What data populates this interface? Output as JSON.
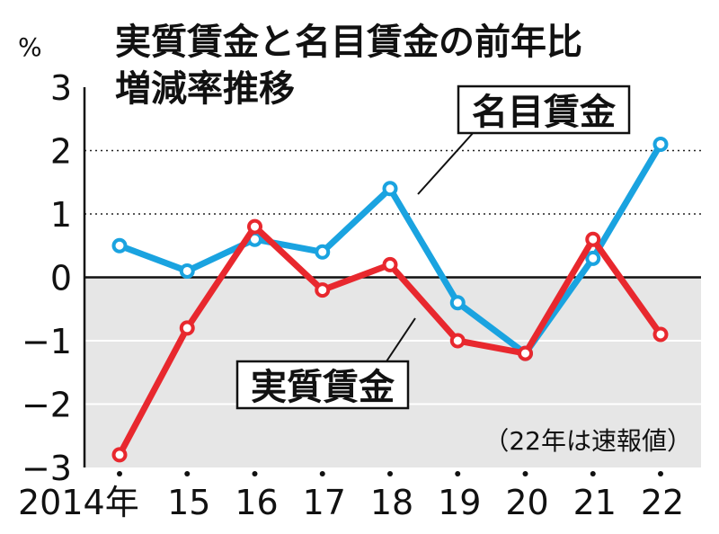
{
  "chart_data": {
    "type": "line",
    "title_line1": "実質賃金と名目賃金の前年比",
    "title_line2": "増減率推移",
    "unit": "%",
    "note": "（22年は速報値）",
    "x": [
      "2014年",
      "15",
      "16",
      "17",
      "18",
      "19",
      "20",
      "21",
      "22"
    ],
    "ylim": [
      -3,
      3
    ],
    "yticks": [
      "3",
      "2",
      "1",
      "0",
      "−1",
      "−2",
      "−3"
    ],
    "grid": "dotted at 1 and 2; solid at 0 and below",
    "series": [
      {
        "name": "名目賃金",
        "color": "#1aa3e0",
        "values": [
          0.5,
          0.1,
          0.6,
          0.4,
          1.4,
          -0.4,
          -1.2,
          0.3,
          2.1
        ]
      },
      {
        "name": "実質賃金",
        "color": "#e8282e",
        "values": [
          -2.8,
          -0.8,
          0.8,
          -0.2,
          0.2,
          -1.0,
          -1.2,
          0.6,
          -0.9
        ]
      }
    ]
  }
}
